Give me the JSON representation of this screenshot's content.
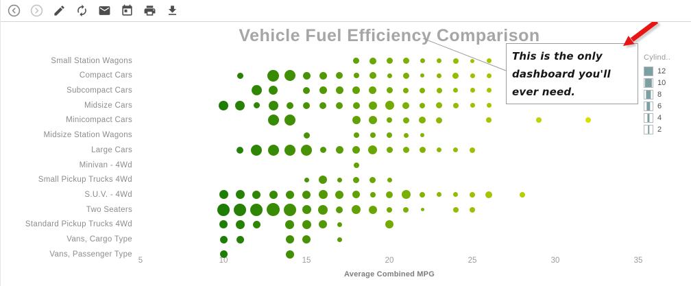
{
  "title": "Vehicle Fuel Efficiency Comparison",
  "toolbar": {
    "icons": [
      {
        "name": "back"
      },
      {
        "name": "forward"
      },
      {
        "name": "edit"
      },
      {
        "name": "refresh"
      },
      {
        "name": "email"
      },
      {
        "name": "calendar"
      },
      {
        "name": "print"
      },
      {
        "name": "download"
      }
    ]
  },
  "annotation": {
    "lines": [
      "This is the only",
      "dashboard you'll",
      "ever need."
    ]
  },
  "legend": {
    "title": "Cylind..",
    "swatch_color": "#7ca0a1",
    "items": [
      {
        "label": "12",
        "fill_ratio": 1.0
      },
      {
        "label": "10",
        "fill_ratio": 0.86
      },
      {
        "label": "8",
        "fill_ratio": 0.6
      },
      {
        "label": "6",
        "fill_ratio": 0.45
      },
      {
        "label": "4",
        "fill_ratio": 0.26
      },
      {
        "label": "2",
        "fill_ratio": 0.12
      }
    ]
  },
  "x_axis": {
    "label": "Average Combined MPG",
    "ticks": [
      5,
      10,
      15,
      20,
      25,
      30,
      35
    ]
  },
  "chart_data": {
    "type": "scatter",
    "title": "Vehicle Fuel Efficiency Comparison",
    "xlabel": "Average Combined MPG",
    "x_range": [
      5,
      35
    ],
    "grid": false,
    "size_encodes": "Cylinders (2-12)",
    "color_encodes": "MPG (dark green = low, yellow-green = high)",
    "colors_by_mpg": {
      "10": "#1e7d05",
      "11": "#268105",
      "12": "#2f8604",
      "13": "#378a04",
      "14": "#408f04",
      "15": "#489304",
      "16": "#519804",
      "17": "#599c03",
      "18": "#62a103",
      "19": "#6aa603",
      "20": "#73aa03",
      "21": "#7baf02",
      "22": "#83b302",
      "23": "#8cb702",
      "24": "#94bc02",
      "25": "#9dc002",
      "26": "#a5c501",
      "28": "#b6ce01",
      "29": "#bfd301",
      "32": "#d8e000"
    },
    "rows": [
      {
        "category": "Small Station Wagons",
        "points": [
          [
            18,
            9
          ],
          [
            19,
            10
          ],
          [
            20,
            9
          ],
          [
            21,
            9
          ],
          [
            22,
            7
          ],
          [
            23,
            7
          ],
          [
            24,
            8
          ],
          [
            25,
            6
          ],
          [
            26,
            7
          ]
        ]
      },
      {
        "category": "Compact Cars",
        "points": [
          [
            11,
            9
          ],
          [
            13,
            17
          ],
          [
            14,
            16
          ],
          [
            15,
            11
          ],
          [
            16,
            11
          ],
          [
            17,
            10
          ],
          [
            18,
            8
          ],
          [
            19,
            10
          ],
          [
            20,
            7
          ],
          [
            21,
            9
          ],
          [
            22,
            6
          ],
          [
            23,
            7
          ],
          [
            24,
            9
          ],
          [
            25,
            7
          ],
          [
            26,
            7
          ]
        ]
      },
      {
        "category": "Subcompact Cars",
        "points": [
          [
            12,
            15
          ],
          [
            13,
            13
          ],
          [
            15,
            10
          ],
          [
            16,
            11
          ],
          [
            17,
            11
          ],
          [
            18,
            11
          ],
          [
            19,
            11
          ],
          [
            20,
            9
          ],
          [
            21,
            8
          ],
          [
            22,
            8
          ],
          [
            23,
            8
          ],
          [
            24,
            7
          ],
          [
            25,
            7
          ],
          [
            26,
            7
          ]
        ]
      },
      {
        "category": "Midsize Cars",
        "points": [
          [
            10,
            14
          ],
          [
            11,
            14
          ],
          [
            12,
            9
          ],
          [
            13,
            14
          ],
          [
            14,
            10
          ],
          [
            15,
            10
          ],
          [
            16,
            10
          ],
          [
            17,
            10
          ],
          [
            18,
            10
          ],
          [
            19,
            12
          ],
          [
            20,
            13
          ],
          [
            21,
            10
          ],
          [
            22,
            8
          ],
          [
            23,
            9
          ],
          [
            24,
            8
          ],
          [
            25,
            7
          ],
          [
            26,
            7
          ]
        ]
      },
      {
        "category": "Minicompact Cars",
        "points": [
          [
            13,
            16
          ],
          [
            14,
            16
          ],
          [
            18,
            12
          ],
          [
            19,
            12
          ],
          [
            20,
            8
          ],
          [
            21,
            9
          ],
          [
            22,
            10
          ],
          [
            23,
            9
          ],
          [
            26,
            8
          ],
          [
            29,
            8
          ],
          [
            32,
            8
          ]
        ]
      },
      {
        "category": "Midsize Station Wagons",
        "points": [
          [
            15,
            9
          ],
          [
            18,
            8
          ],
          [
            19,
            8
          ],
          [
            20,
            8
          ],
          [
            21,
            7
          ],
          [
            22,
            6
          ]
        ]
      },
      {
        "category": "Large Cars",
        "points": [
          [
            11,
            10
          ],
          [
            12,
            16
          ],
          [
            13,
            16
          ],
          [
            14,
            16
          ],
          [
            15,
            16
          ],
          [
            16,
            9
          ],
          [
            17,
            11
          ],
          [
            18,
            11
          ],
          [
            19,
            13
          ],
          [
            20,
            9
          ],
          [
            21,
            9
          ],
          [
            22,
            9
          ],
          [
            23,
            7
          ],
          [
            24,
            7
          ],
          [
            25,
            8
          ]
        ]
      },
      {
        "category": "Minivan - 4Wd",
        "points": [
          [
            18,
            8
          ]
        ]
      },
      {
        "category": "Small Pickup Trucks 4Wd",
        "points": [
          [
            15,
            7
          ],
          [
            16,
            12
          ],
          [
            17,
            7
          ],
          [
            18,
            9
          ],
          [
            19,
            9
          ],
          [
            20,
            7
          ]
        ]
      },
      {
        "category": "S.U.V. - 4Wd",
        "points": [
          [
            10,
            13
          ],
          [
            11,
            13
          ],
          [
            12,
            12
          ],
          [
            13,
            12
          ],
          [
            14,
            12
          ],
          [
            15,
            12
          ],
          [
            16,
            13
          ],
          [
            17,
            12
          ],
          [
            18,
            11
          ],
          [
            19,
            8
          ],
          [
            20,
            10
          ],
          [
            21,
            13
          ],
          [
            22,
            8
          ],
          [
            23,
            7
          ],
          [
            24,
            7
          ],
          [
            25,
            8
          ],
          [
            26,
            10
          ],
          [
            28,
            8
          ]
        ]
      },
      {
        "category": "Two Seaters",
        "points": [
          [
            10,
            18
          ],
          [
            11,
            18
          ],
          [
            12,
            18
          ],
          [
            13,
            19
          ],
          [
            14,
            18
          ],
          [
            15,
            13
          ],
          [
            16,
            14
          ],
          [
            17,
            10
          ],
          [
            18,
            13
          ],
          [
            19,
            12
          ],
          [
            20,
            8
          ],
          [
            21,
            8
          ],
          [
            22,
            5
          ],
          [
            24,
            8
          ],
          [
            25,
            8
          ]
        ]
      },
      {
        "category": "Standard Pickup Trucks 4Wd",
        "points": [
          [
            10,
            12
          ],
          [
            11,
            13
          ],
          [
            12,
            11
          ],
          [
            14,
            13
          ],
          [
            15,
            13
          ],
          [
            16,
            12
          ],
          [
            17,
            7
          ],
          [
            20,
            12
          ]
        ]
      },
      {
        "category": "Vans, Cargo Type",
        "points": [
          [
            10,
            11
          ],
          [
            11,
            11
          ],
          [
            14,
            12
          ],
          [
            15,
            12
          ],
          [
            17,
            7
          ]
        ]
      },
      {
        "category": "Vans, Passenger Type",
        "points": [
          [
            10,
            11
          ],
          [
            14,
            12
          ]
        ]
      }
    ]
  }
}
